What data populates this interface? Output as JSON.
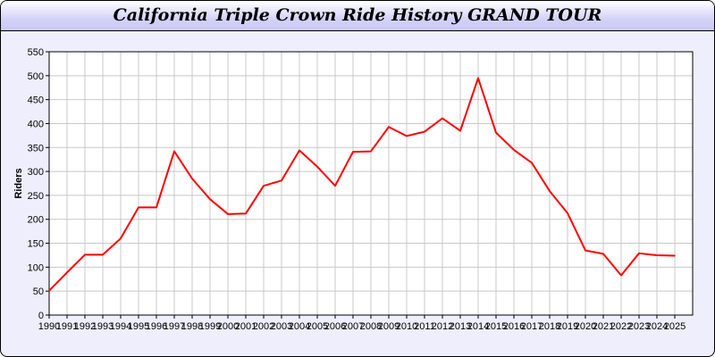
{
  "chart_data": {
    "type": "line",
    "title": "California Triple Crown Ride History GRAND TOUR",
    "xlabel": "",
    "ylabel": "Riders",
    "ylim": [
      0,
      550
    ],
    "yticks": [
      0,
      50,
      100,
      150,
      200,
      250,
      300,
      350,
      400,
      450,
      500,
      550
    ],
    "grid": true,
    "line_color": "#ff0000",
    "x": [
      1990,
      1991,
      1992,
      1993,
      1994,
      1995,
      1996,
      1997,
      1998,
      1999,
      2000,
      2001,
      2002,
      2003,
      2004,
      2005,
      2006,
      2007,
      2008,
      2009,
      2010,
      2011,
      2012,
      2013,
      2014,
      2015,
      2016,
      2017,
      2018,
      2019,
      2020,
      2021,
      2022,
      2023,
      2024,
      2025
    ],
    "values": [
      51,
      89,
      126,
      126,
      160,
      225,
      225,
      342,
      285,
      242,
      211,
      212,
      270,
      281,
      344,
      310,
      270,
      341,
      342,
      393,
      374,
      383,
      411,
      385,
      495,
      381,
      345,
      318,
      259,
      213,
      135,
      128,
      83,
      129,
      125,
      124
    ]
  }
}
